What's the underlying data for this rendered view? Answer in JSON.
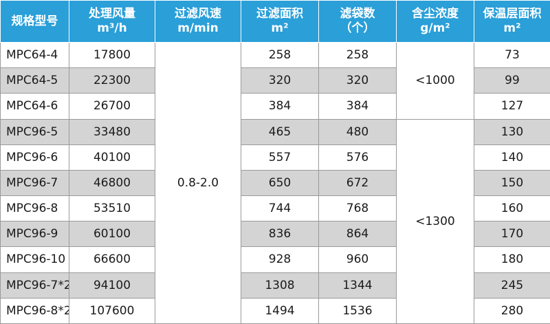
{
  "headers": [
    {
      "line1": "规格型号",
      "line2": ""
    },
    {
      "line1": "处理风量",
      "line2": "m³/h"
    },
    {
      "line1": "过滤风速",
      "line2": "m/min"
    },
    {
      "line1": "过滤面积",
      "line2": "m²"
    },
    {
      "line1": "滤袋数",
      "line2": "（个）"
    },
    {
      "line1": "含尘浓度",
      "line2": "g/m²"
    },
    {
      "line1": "保温层面积",
      "line2": "m²"
    }
  ],
  "filter_velocity": "0.8-2.0",
  "dust_concentration_groups": [
    "<1000",
    "<1300"
  ],
  "rows": [
    {
      "model": "MPC64-4",
      "airflow": "17800",
      "filter_area": "258",
      "bags": "258",
      "insulation_area": "73"
    },
    {
      "model": "MPC64-5",
      "airflow": "22300",
      "filter_area": "320",
      "bags": "320",
      "insulation_area": "99"
    },
    {
      "model": "MPC64-6",
      "airflow": "26700",
      "filter_area": "384",
      "bags": "384",
      "insulation_area": "127"
    },
    {
      "model": "MPC96-5",
      "airflow": "33480",
      "filter_area": "465",
      "bags": "480",
      "insulation_area": "130"
    },
    {
      "model": "MPC96-6",
      "airflow": "40100",
      "filter_area": "557",
      "bags": "576",
      "insulation_area": "140"
    },
    {
      "model": "MPC96-7",
      "airflow": "46800",
      "filter_area": "650",
      "bags": "672",
      "insulation_area": "150"
    },
    {
      "model": "MPC96-8",
      "airflow": "53510",
      "filter_area": "744",
      "bags": "768",
      "insulation_area": "160"
    },
    {
      "model": "MPC96-9",
      "airflow": "60100",
      "filter_area": "836",
      "bags": "864",
      "insulation_area": "170"
    },
    {
      "model": "MPC96-10",
      "airflow": "66600",
      "filter_area": "928",
      "bags": "960",
      "insulation_area": "180"
    },
    {
      "model": "MPC96-7*2",
      "airflow": "94100",
      "filter_area": "1308",
      "bags": "1344",
      "insulation_area": "245"
    },
    {
      "model": "MPC96-8*2",
      "airflow": "107600",
      "filter_area": "1494",
      "bags": "1536",
      "insulation_area": "280"
    }
  ],
  "colors": {
    "header_bg": "#2a9fd8",
    "header_text": "#ffffff",
    "shade": "#d4d4d4",
    "border": "#9a9a9a"
  }
}
